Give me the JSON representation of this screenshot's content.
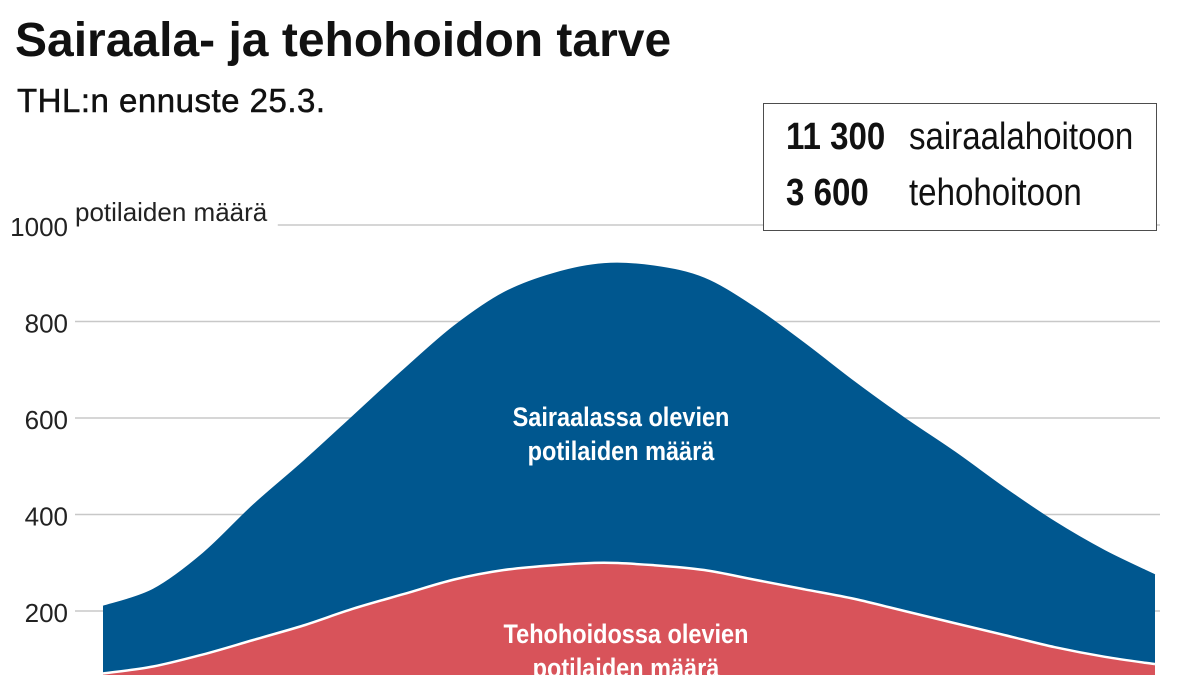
{
  "chart_data": {
    "type": "area",
    "title": "Sairaala- ja tehohoidon tarve",
    "subtitle": "THL:n ennuste 25.3.",
    "ylabel": "potilaiden määrä",
    "ylim": [
      0,
      1000
    ],
    "yticks": [
      200,
      400,
      600,
      800,
      1000
    ],
    "grid": true,
    "annotations": [
      {
        "value": "11 300",
        "label": "sairaalahoitoon"
      },
      {
        "value": "3 600",
        "label": "tehohoitoon"
      }
    ],
    "series": [
      {
        "name": [
          "Sairaalassa olevien",
          "potilaiden määrä"
        ],
        "color": "#00578f",
        "values": [
          210,
          245,
          320,
          420,
          510,
          605,
          700,
          790,
          860,
          900,
          920,
          915,
          890,
          830,
          755,
          675,
          600,
          530,
          455,
          385,
          325,
          275
        ]
      },
      {
        "name": [
          "Tehohoidossa olevien",
          "potilaiden määrä"
        ],
        "color": "#d8535a",
        "values": [
          65,
          85,
          110,
          140,
          170,
          205,
          235,
          265,
          285,
          295,
          300,
          295,
          285,
          265,
          245,
          225,
          200,
          175,
          150,
          125,
          105,
          90
        ]
      }
    ]
  }
}
